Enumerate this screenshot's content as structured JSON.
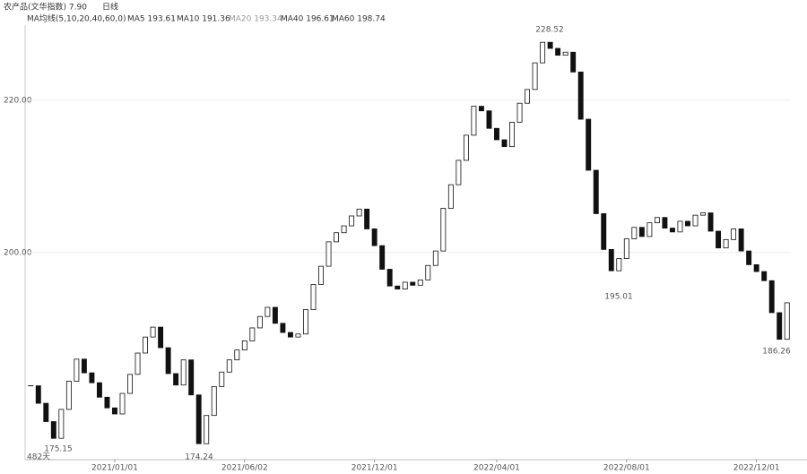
{
  "header": {
    "symbol": "农产品(文华指数) 7.90",
    "period": "日线"
  },
  "legend": {
    "title": "MA均线(5,10,20,40,60,0)",
    "items": [
      "MA5 193.61",
      "MA10 191.36",
      "MA20 193.34",
      "MA40 196.61",
      "MA60 198.74"
    ]
  },
  "footer": {
    "count": "482天"
  },
  "chart_data": {
    "type": "candlestick",
    "categories": [
      null,
      null,
      null,
      null,
      null,
      null,
      null,
      null,
      null,
      null,
      null,
      "2021/01/01",
      null,
      null,
      null,
      null,
      null,
      null,
      null,
      null,
      null,
      null,
      null,
      null,
      null,
      null,
      null,
      null,
      "2021/06/02",
      null,
      null,
      null,
      null,
      null,
      null,
      null,
      null,
      null,
      null,
      null,
      null,
      null,
      null,
      null,
      null,
      "2021/12/01",
      null,
      null,
      null,
      null,
      null,
      null,
      null,
      null,
      null,
      null,
      null,
      null,
      null,
      null,
      null,
      "2022/04/01",
      null,
      null,
      null,
      null,
      null,
      null,
      null,
      null,
      null,
      null,
      null,
      null,
      null,
      null,
      null,
      null,
      "2022/08/01",
      null,
      null,
      null,
      null,
      null,
      null,
      null,
      null,
      null,
      null,
      null,
      null,
      null,
      null,
      null,
      null,
      "2022/12/01",
      null,
      null,
      null,
      null
    ],
    "values": [
      182.5,
      180.2,
      177.8,
      175.6,
      179.4,
      183.1,
      186.0,
      184.2,
      182.9,
      181.0,
      179.6,
      178.8,
      181.5,
      184.0,
      186.8,
      188.9,
      190.2,
      187.5,
      184.1,
      182.6,
      185.9,
      181.3,
      174.9,
      178.6,
      182.4,
      184.3,
      185.9,
      187.2,
      188.4,
      190.1,
      191.6,
      192.8,
      190.7,
      189.5,
      188.9,
      189.3,
      192.5,
      195.8,
      198.2,
      201.4,
      202.6,
      203.5,
      204.8,
      205.7,
      203.1,
      200.9,
      197.8,
      195.6,
      195.2,
      196.1,
      195.7,
      196.4,
      198.3,
      200.2,
      205.8,
      208.9,
      212.1,
      215.4,
      219.2,
      218.6,
      216.3,
      214.8,
      213.9,
      217.1,
      219.6,
      221.4,
      224.9,
      227.6,
      226.8,
      225.9,
      226.3,
      223.7,
      217.5,
      210.8,
      205.1,
      200.4,
      197.6,
      199.2,
      201.8,
      203.3,
      202.1,
      203.9,
      204.6,
      203.2,
      202.7,
      204.1,
      203.5,
      204.9,
      205.2,
      202.8,
      200.6,
      201.7,
      203.1,
      200.2,
      198.4,
      197.5,
      196.3,
      192.1,
      188.6,
      193.4
    ],
    "annotations": [
      "228.52",
      "195.01",
      "186.26",
      "175.15",
      "174.24"
    ],
    "color": "#111111",
    "ylim": [
      172.8,
      230.8
    ],
    "yticks": [
      {
        "value": 200,
        "label": "200.00"
      },
      {
        "value": 220,
        "label": "220.00"
      }
    ],
    "grid": true
  }
}
